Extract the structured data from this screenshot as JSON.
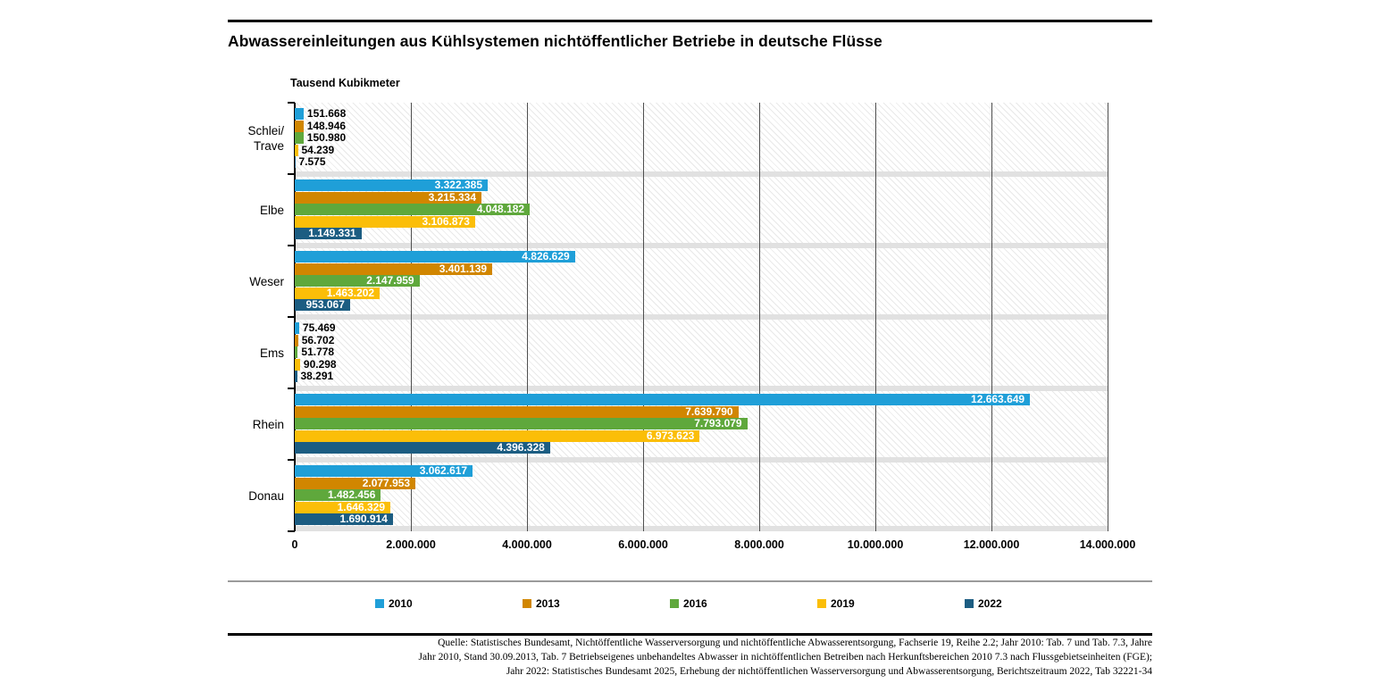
{
  "title": "Abwassereinleitungen aus Kühlsystemen nichtöffentlicher Betriebe in deutsche Flüsse",
  "unit_label": "Tausend Kubikmeter",
  "chart_data": {
    "type": "bar",
    "orientation": "horizontal",
    "title": "Abwassereinleitungen aus Kühlsystemen nichtöffentlicher Betriebe in deutsche Flüsse",
    "xlabel": "Tausend Kubikmeter",
    "ylabel": "",
    "grid": true,
    "legend_position": "bottom",
    "xlim": [
      0,
      14000000
    ],
    "x_ticks": [
      "0",
      "2.000.000",
      "4.000.000",
      "6.000.000",
      "8.000.000",
      "10.000.000",
      "12.000.000",
      "14.000.000"
    ],
    "categories": [
      "Schlei/Trave",
      "Elbe",
      "Weser",
      "Ems",
      "Rhein",
      "Donau"
    ],
    "category_lines": [
      [
        "Schlei/",
        "Trave"
      ],
      [
        "Elbe"
      ],
      [
        "Weser"
      ],
      [
        "Ems"
      ],
      [
        "Rhein"
      ],
      [
        "Donau"
      ]
    ],
    "series": [
      {
        "name": "2010",
        "color": "#1f9fd8",
        "values": [
          151668,
          3322385,
          4826629,
          75469,
          12663649,
          3062617
        ],
        "labels": [
          "151.668",
          "3.322.385",
          "4.826.629",
          "75.469",
          "12.663.649",
          "3.062.617"
        ]
      },
      {
        "name": "2013",
        "color": "#d18600",
        "values": [
          148946,
          3215334,
          3401139,
          56702,
          7639790,
          2077953
        ],
        "labels": [
          "148.946",
          "3.215.334",
          "3.401.139",
          "56.702",
          "7.639.790",
          "2.077.953"
        ]
      },
      {
        "name": "2016",
        "color": "#5fa83c",
        "values": [
          150980,
          4048182,
          2147959,
          51778,
          7793079,
          1482456
        ],
        "labels": [
          "150.980",
          "4.048.182",
          "2.147.959",
          "51.778",
          "7.793.079",
          "1.482.456"
        ]
      },
      {
        "name": "2019",
        "color": "#fbbe08",
        "values": [
          54239,
          3106873,
          1463202,
          90298,
          6973623,
          1646329
        ],
        "labels": [
          "54.239",
          "3.106.873",
          "1.463.202",
          "90.298",
          "6.973.623",
          "1.646.329"
        ]
      },
      {
        "name": "2022",
        "color": "#1c5d82",
        "values": [
          7575,
          1149331,
          953067,
          38291,
          4396328,
          1690914
        ],
        "labels": [
          "7.575",
          "1.149.331",
          "953.067",
          "38.291",
          "4.396.328",
          "1.690.914"
        ]
      }
    ]
  },
  "legend": {
    "items": [
      {
        "label": "2010",
        "color": "#1f9fd8"
      },
      {
        "label": "2013",
        "color": "#d18600"
      },
      {
        "label": "2016",
        "color": "#5fa83c"
      },
      {
        "label": "2019",
        "color": "#fbbe08"
      },
      {
        "label": "2022",
        "color": "#1c5d82"
      }
    ]
  },
  "source_lines": [
    "Quelle: Statistisches Bundesamt, Nichtöffentliche Wasserversorgung und nichtöffentliche Abwasserentsorgung, Fachserie 19, Reihe 2.2; Jahr 2010: Tab. 7 und Tab. 7.3, Jahre",
    "Jahr 2010, Stand 30.09.2013, Tab. 7 Betriebseigenes unbehandeltes Abwasser in nichtöffentlichen Betreiben nach Herkunftsbereichen 2010 7.3 nach Flussgebietseinheiten (FGE);",
    "Jahr 2022: Statistisches Bundesamt 2025, Erhebung der nichtöffentlichen Wasserversorgung und Abwasserentsorgung, Berichtszeitraum 2022, Tab 32221-34"
  ]
}
